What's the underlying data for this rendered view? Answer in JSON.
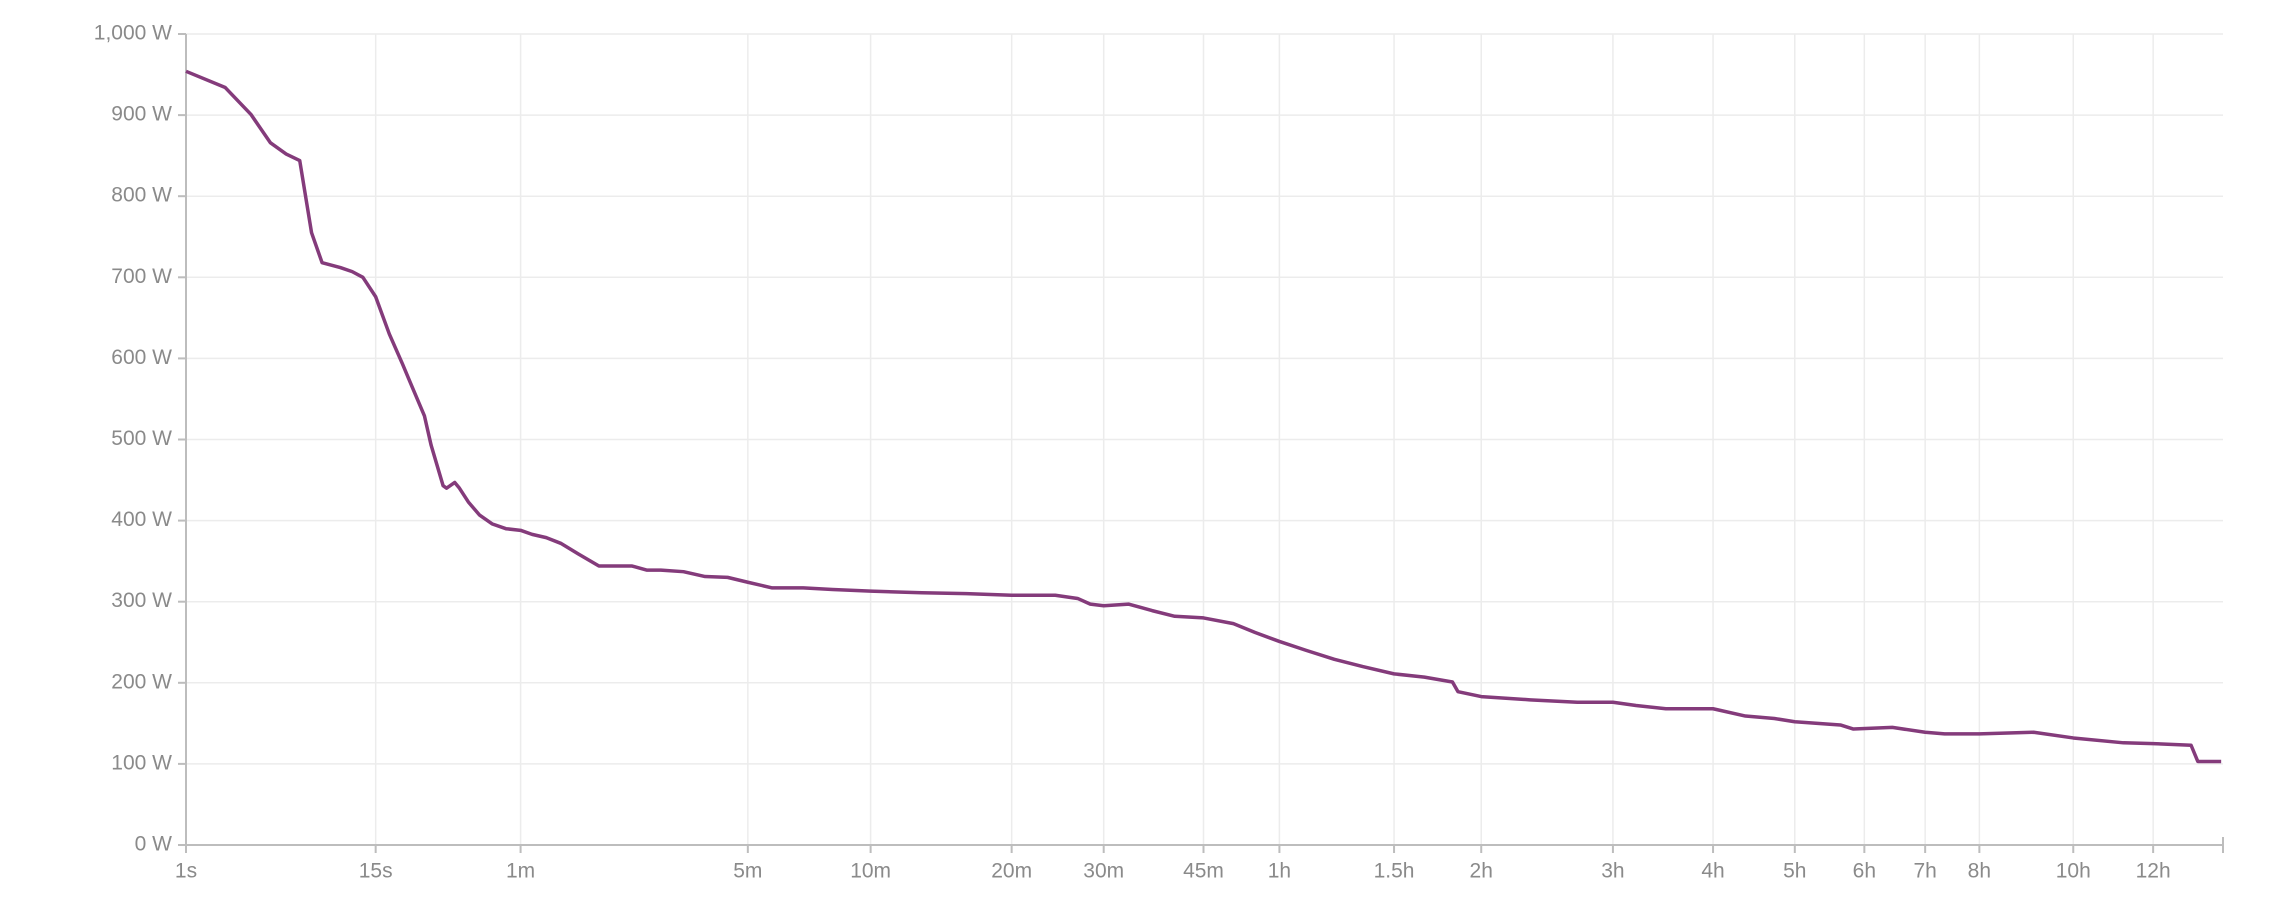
{
  "chart_data": {
    "type": "line",
    "color": "#843b7b",
    "xscale": "pow",
    "xexponent": 0.2,
    "grid": true,
    "xlim": [
      1,
      50400
    ],
    "ylim": [
      0,
      1000
    ],
    "xticks": [
      {
        "value": 1,
        "label": "1s"
      },
      {
        "value": 15,
        "label": "15s"
      },
      {
        "value": 60,
        "label": "1m"
      },
      {
        "value": 300,
        "label": "5m"
      },
      {
        "value": 600,
        "label": "10m"
      },
      {
        "value": 1200,
        "label": "20m"
      },
      {
        "value": 1800,
        "label": "30m"
      },
      {
        "value": 2700,
        "label": "45m"
      },
      {
        "value": 3600,
        "label": "1h"
      },
      {
        "value": 5400,
        "label": "1.5h"
      },
      {
        "value": 7200,
        "label": "2h"
      },
      {
        "value": 10800,
        "label": "3h"
      },
      {
        "value": 14400,
        "label": "4h"
      },
      {
        "value": 18000,
        "label": "5h"
      },
      {
        "value": 21600,
        "label": "6h"
      },
      {
        "value": 25200,
        "label": "7h"
      },
      {
        "value": 28800,
        "label": "8h"
      },
      {
        "value": 36000,
        "label": "10h"
      },
      {
        "value": 43200,
        "label": "12h"
      }
    ],
    "yticks": [
      {
        "value": 0,
        "label": "0 W"
      },
      {
        "value": 100,
        "label": "100 W"
      },
      {
        "value": 200,
        "label": "200 W"
      },
      {
        "value": 300,
        "label": "300 W"
      },
      {
        "value": 400,
        "label": "400 W"
      },
      {
        "value": 500,
        "label": "500 W"
      },
      {
        "value": 600,
        "label": "600 W"
      },
      {
        "value": 700,
        "label": "700 W"
      },
      {
        "value": 800,
        "label": "800 W"
      },
      {
        "value": 900,
        "label": "900 W"
      },
      {
        "value": 1000,
        "label": "1,000 W"
      }
    ],
    "x": [
      1,
      2,
      3,
      4,
      5,
      6,
      7,
      8,
      10,
      11.5,
      13,
      15,
      17.4,
      20,
      22.3,
      25,
      26.7,
      30,
      31,
      33.5,
      35,
      38,
      42,
      47,
      53,
      60,
      66,
      74,
      83,
      95,
      111,
      126,
      141,
      156,
      172,
      200,
      230,
      265,
      300,
      347,
      415,
      489,
      600,
      780,
      970,
      1200,
      1460,
      1610,
      1700,
      1800,
      2000,
      2200,
      2410,
      2700,
      3030,
      3290,
      3600,
      3970,
      4390,
      4850,
      5400,
      5980,
      6560,
      6680,
      7200,
      8400,
      9710,
      10800,
      11560,
      12600,
      14400,
      15750,
      17040,
      18000,
      20300,
      21000,
      23200,
      25200,
      26450,
      28800,
      32800,
      36000,
      40400,
      43200,
      47000,
      47700,
      50200
    ],
    "values": [
      954,
      934,
      901,
      866,
      852,
      844,
      755,
      718,
      712,
      707,
      700,
      676,
      630,
      593,
      562,
      529,
      493,
      443,
      440,
      447,
      440,
      423,
      407,
      396,
      390,
      388,
      383,
      379,
      372,
      359,
      344,
      344,
      344,
      339,
      339,
      337,
      331,
      330,
      324,
      317,
      317,
      315,
      313,
      311,
      310,
      308,
      308,
      304,
      297,
      295,
      297,
      289,
      282,
      280,
      273,
      262,
      251,
      240,
      229,
      220,
      211,
      207,
      201,
      189,
      183,
      179,
      176,
      176,
      172,
      168,
      168,
      159,
      156,
      152,
      148,
      143,
      145,
      139,
      137,
      137,
      139,
      132,
      126,
      125,
      123,
      103,
      103
    ]
  }
}
